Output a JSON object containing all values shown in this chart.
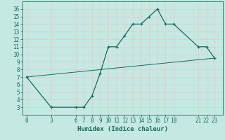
{
  "xlabel": "Humidex (Indice chaleur)",
  "bg_color": "#c5e8e2",
  "line_color": "#1a6b5a",
  "grid_color": "#e8c8c8",
  "curve1_x": [
    0,
    3,
    6,
    7,
    8,
    9,
    10,
    11,
    12,
    13,
    14,
    15,
    16,
    17,
    18,
    21,
    22,
    23
  ],
  "curve1_y": [
    7,
    3,
    3,
    3,
    4.5,
    7.5,
    11,
    11,
    12.5,
    14,
    14,
    15,
    16,
    14,
    14,
    11,
    11,
    9.5
  ],
  "curve2_x": [
    0,
    23
  ],
  "curve2_y": [
    7,
    9.5
  ],
  "xlim": [
    -0.5,
    24
  ],
  "ylim": [
    2,
    17
  ],
  "xticks": [
    0,
    3,
    6,
    7,
    8,
    9,
    10,
    11,
    12,
    13,
    14,
    15,
    16,
    17,
    18,
    21,
    22,
    23
  ],
  "yticks": [
    3,
    4,
    5,
    6,
    7,
    8,
    9,
    10,
    11,
    12,
    13,
    14,
    15,
    16
  ],
  "tick_fontsize": 5.5,
  "label_fontsize": 6.5
}
